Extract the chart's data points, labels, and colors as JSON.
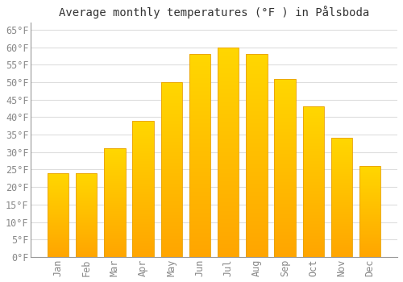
{
  "title": "Average monthly temperatures (°F ) in Pålsboda",
  "months": [
    "Jan",
    "Feb",
    "Mar",
    "Apr",
    "May",
    "Jun",
    "Jul",
    "Aug",
    "Sep",
    "Oct",
    "Nov",
    "Dec"
  ],
  "values": [
    24,
    24,
    31,
    39,
    50,
    58,
    60,
    58,
    51,
    43,
    34,
    26
  ],
  "bar_color_top": "#FFD700",
  "bar_color_bottom": "#FFA500",
  "bar_edge_color": "#E8A000",
  "background_color": "#FFFFFF",
  "grid_color": "#DDDDDD",
  "ylim": [
    0,
    67
  ],
  "ytick_step": 5,
  "title_fontsize": 10,
  "tick_fontsize": 8.5,
  "label_color": "#888888"
}
